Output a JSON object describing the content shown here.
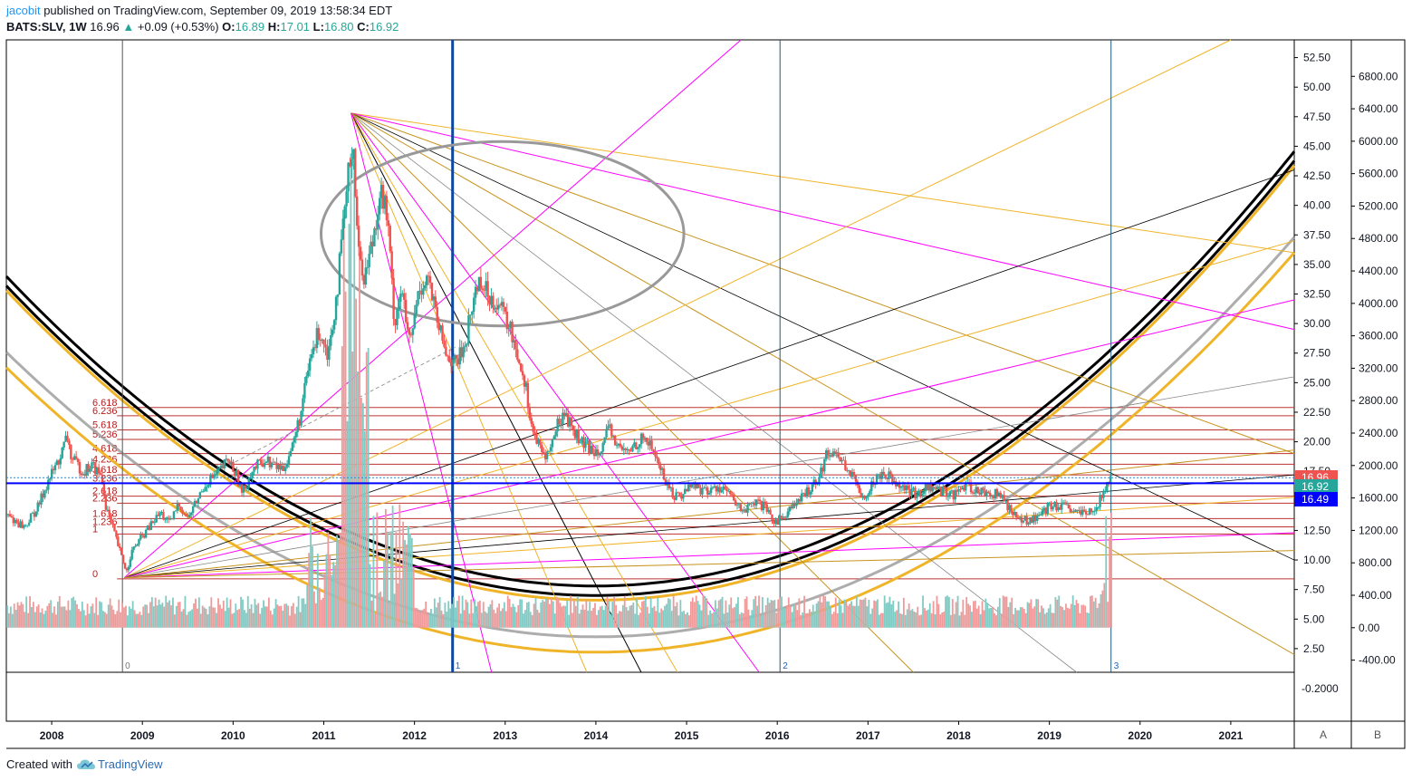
{
  "header": {
    "author": "jacobit",
    "published": "published on TradingView.com, September 09, 2019 13:58:34 EDT",
    "symbol": "BATS:SLV, 1W",
    "last": "16.96",
    "change_arrow": "▲",
    "change": "+0.09 (+0.53%)",
    "open_label": "O:",
    "open": "16.89",
    "high_label": "H:",
    "high": "17.01",
    "low_label": "L:",
    "low": "16.80",
    "close_label": "C:",
    "close": "16.92"
  },
  "footer": {
    "created_with": "Created with",
    "brand": "TradingView"
  },
  "price_tags": [
    {
      "text": "16.96",
      "color": "#ef5350"
    },
    {
      "text": "16.92",
      "color": "#26a69a"
    },
    {
      "text": "16.49",
      "color": "#0000ff"
    }
  ],
  "scale_buttons": [
    "A",
    "B"
  ],
  "colors": {
    "up": "#26a69a",
    "down": "#ef5350",
    "fib": "#b71c1c",
    "gold": "#f0b429",
    "magenta": "#ff00ff",
    "blue": "#0d47a1"
  },
  "chart_data": {
    "type": "candlestick",
    "title": "BATS:SLV, 1W",
    "x_ticks": [
      "2008",
      "2009",
      "2010",
      "2011",
      "2012",
      "2013",
      "2014",
      "2015",
      "2016",
      "2017",
      "2018",
      "2019",
      "2020",
      "2021"
    ],
    "x_tick_year_values": [
      2008,
      2009,
      2010,
      2011,
      2012,
      2013,
      2014,
      2015,
      2016,
      2017,
      2018,
      2019,
      2020,
      2021
    ],
    "xlim": [
      2007.5,
      2021.7
    ],
    "price_axis_ticks": [
      "52.50",
      "50.00",
      "47.50",
      "45.00",
      "42.50",
      "40.00",
      "37.50",
      "35.00",
      "32.50",
      "30.00",
      "27.50",
      "25.00",
      "22.50",
      "20.00",
      "17.50",
      "15.00",
      "12.50",
      "10.00",
      "7.50",
      "5.00",
      "2.50"
    ],
    "price_axis_values": [
      52.5,
      50,
      47.5,
      45,
      42.5,
      40,
      37.5,
      35,
      32.5,
      30,
      27.5,
      25,
      22.5,
      20,
      17.5,
      15,
      12.5,
      10,
      7.5,
      5,
      2.5
    ],
    "ylim": [
      0.5,
      54.0
    ],
    "volume_axis_ticks": [
      "6800.00",
      "6400.00",
      "6000.00",
      "5600.00",
      "5200.00",
      "4800.00",
      "4400.00",
      "4000.00",
      "3600.00",
      "3200.00",
      "2800.00",
      "2400.00",
      "2000.00",
      "1600.00",
      "1200.00",
      "800.00",
      "400.00",
      "0.00",
      "-400.00"
    ],
    "volume_axis_values": [
      6800,
      6400,
      6000,
      5600,
      5200,
      4800,
      4400,
      4000,
      3600,
      3200,
      2800,
      2400,
      2000,
      1600,
      1200,
      800,
      400,
      0,
      -400
    ],
    "volume_ylim": [
      -550,
      7250
    ],
    "lower_pane_ticks": [
      "-0.2000"
    ],
    "price_path": [
      [
        2007.5,
        13.8
      ],
      [
        2007.7,
        12.8
      ],
      [
        2007.85,
        14.5
      ],
      [
        2007.95,
        16.5
      ],
      [
        2008.1,
        18.8
      ],
      [
        2008.17,
        20.5
      ],
      [
        2008.22,
        18.5
      ],
      [
        2008.35,
        17.5
      ],
      [
        2008.45,
        18.0
      ],
      [
        2008.55,
        17.0
      ],
      [
        2008.6,
        14.5
      ],
      [
        2008.7,
        12.0
      ],
      [
        2008.78,
        10.0
      ],
      [
        2008.83,
        9.0
      ],
      [
        2008.87,
        10.5
      ],
      [
        2008.95,
        11.5
      ],
      [
        2009.1,
        13.0
      ],
      [
        2009.2,
        14.0
      ],
      [
        2009.3,
        13.0
      ],
      [
        2009.4,
        14.8
      ],
      [
        2009.5,
        13.5
      ],
      [
        2009.6,
        15.0
      ],
      [
        2009.7,
        16.5
      ],
      [
        2009.85,
        17.5
      ],
      [
        2009.95,
        18.5
      ],
      [
        2010.05,
        17.0
      ],
      [
        2010.1,
        15.5
      ],
      [
        2010.2,
        17.5
      ],
      [
        2010.35,
        18.5
      ],
      [
        2010.45,
        18.0
      ],
      [
        2010.55,
        17.7
      ],
      [
        2010.65,
        19.5
      ],
      [
        2010.75,
        22.5
      ],
      [
        2010.85,
        27.0
      ],
      [
        2010.95,
        29.5
      ],
      [
        2011.05,
        27.5
      ],
      [
        2011.15,
        33.0
      ],
      [
        2011.25,
        41.0
      ],
      [
        2011.32,
        46.0
      ],
      [
        2011.38,
        36.0
      ],
      [
        2011.45,
        34.0
      ],
      [
        2011.55,
        37.5
      ],
      [
        2011.62,
        41.5
      ],
      [
        2011.7,
        39.0
      ],
      [
        2011.78,
        30.0
      ],
      [
        2011.85,
        33.0
      ],
      [
        2011.95,
        28.0
      ],
      [
        2012.05,
        33.0
      ],
      [
        2012.15,
        34.0
      ],
      [
        2012.25,
        30.0
      ],
      [
        2012.35,
        27.5
      ],
      [
        2012.45,
        26.5
      ],
      [
        2012.55,
        28.0
      ],
      [
        2012.65,
        32.0
      ],
      [
        2012.72,
        34.0
      ],
      [
        2012.8,
        32.5
      ],
      [
        2012.9,
        32.0
      ],
      [
        2013.0,
        30.5
      ],
      [
        2013.1,
        28.5
      ],
      [
        2013.22,
        25.0
      ],
      [
        2013.3,
        21.0
      ],
      [
        2013.4,
        19.0
      ],
      [
        2013.48,
        19.0
      ],
      [
        2013.58,
        21.5
      ],
      [
        2013.65,
        22.5
      ],
      [
        2013.75,
        21.0
      ],
      [
        2013.85,
        19.8
      ],
      [
        2013.95,
        19.3
      ],
      [
        2014.05,
        19.5
      ],
      [
        2014.15,
        21.0
      ],
      [
        2014.25,
        19.5
      ],
      [
        2014.35,
        19.0
      ],
      [
        2014.45,
        20.0
      ],
      [
        2014.55,
        20.3
      ],
      [
        2014.65,
        19.0
      ],
      [
        2014.75,
        17.0
      ],
      [
        2014.85,
        15.5
      ],
      [
        2014.95,
        15.5
      ],
      [
        2015.05,
        16.5
      ],
      [
        2015.15,
        16.0
      ],
      [
        2015.25,
        15.8
      ],
      [
        2015.35,
        16.2
      ],
      [
        2015.45,
        15.8
      ],
      [
        2015.55,
        14.5
      ],
      [
        2015.65,
        14.2
      ],
      [
        2015.75,
        14.8
      ],
      [
        2015.85,
        14.5
      ],
      [
        2015.95,
        13.3
      ],
      [
        2016.05,
        13.5
      ],
      [
        2016.15,
        14.5
      ],
      [
        2016.25,
        15.0
      ],
      [
        2016.35,
        16.0
      ],
      [
        2016.45,
        17.0
      ],
      [
        2016.55,
        19.0
      ],
      [
        2016.62,
        19.3
      ],
      [
        2016.7,
        18.5
      ],
      [
        2016.8,
        17.5
      ],
      [
        2016.9,
        15.8
      ],
      [
        2016.98,
        15.5
      ],
      [
        2017.05,
        16.5
      ],
      [
        2017.15,
        17.5
      ],
      [
        2017.25,
        17.0
      ],
      [
        2017.35,
        16.5
      ],
      [
        2017.45,
        15.8
      ],
      [
        2017.55,
        15.5
      ],
      [
        2017.65,
        16.2
      ],
      [
        2017.75,
        16.0
      ],
      [
        2017.85,
        15.8
      ],
      [
        2017.95,
        15.5
      ],
      [
        2018.05,
        16.2
      ],
      [
        2018.15,
        16.0
      ],
      [
        2018.25,
        15.8
      ],
      [
        2018.35,
        15.6
      ],
      [
        2018.45,
        15.5
      ],
      [
        2018.55,
        14.5
      ],
      [
        2018.65,
        13.5
      ],
      [
        2018.72,
        13.3
      ],
      [
        2018.8,
        13.5
      ],
      [
        2018.9,
        13.8
      ],
      [
        2019.0,
        14.5
      ],
      [
        2019.1,
        14.6
      ],
      [
        2019.2,
        14.3
      ],
      [
        2019.3,
        14.0
      ],
      [
        2019.4,
        13.8
      ],
      [
        2019.48,
        14.2
      ],
      [
        2019.55,
        15.0
      ],
      [
        2019.62,
        16.0
      ],
      [
        2019.69,
        16.96
      ]
    ],
    "key_levels": [
      16.96,
      16.92,
      16.49
    ],
    "fib_levels": {
      "labels": [
        "6.618",
        "6.236",
        "5.618",
        "5.236",
        "4.618",
        "4.236",
        "3.618",
        "3.236",
        "2.618",
        "2.236",
        "1.618",
        "1.236",
        "1",
        "0"
      ],
      "prices": [
        22.9,
        22.2,
        21.0,
        20.2,
        19.0,
        18.1,
        17.2,
        16.5,
        15.4,
        14.8,
        13.5,
        12.8,
        12.2,
        8.4
      ]
    },
    "verticals": [
      {
        "x": 2008.78,
        "label": "0",
        "color": "#555555"
      },
      {
        "x": 2012.42,
        "label": "1",
        "color": "#0d47a1"
      },
      {
        "x": 2016.03,
        "label": "2",
        "color": "#1e5a73"
      },
      {
        "x": 2019.68,
        "label": "3",
        "color": "#1e5a73"
      }
    ],
    "anchor_high": [
      2011.3,
      47.8
    ],
    "anchor_low": [
      2008.8,
      8.5
    ],
    "fan_from_high": [
      {
        "to": [
          2021.7,
          36.0
        ],
        "color": "#f0b429",
        "width": 1
      },
      {
        "to": [
          2021.7,
          29.5
        ],
        "color": "#ff00ff",
        "width": 1
      },
      {
        "to": [
          2021.7,
          19.0
        ],
        "color": "#c8941e",
        "width": 1
      },
      {
        "to": [
          2021.7,
          10.0
        ],
        "color": "#000000",
        "width": 0.8
      },
      {
        "to": [
          2021.7,
          2.0
        ],
        "color": "#c8941e",
        "width": 1
      },
      {
        "to": [
          2019.3,
          0.5
        ],
        "color": "#888888",
        "width": 0.8
      },
      {
        "to": [
          2017.5,
          0.5
        ],
        "color": "#c8941e",
        "width": 1
      },
      {
        "to": [
          2015.8,
          0.5
        ],
        "color": "#ff00ff",
        "width": 1
      },
      {
        "to": [
          2014.9,
          0.5
        ],
        "color": "#f0b429",
        "width": 1
      },
      {
        "to": [
          2014.5,
          0.5
        ],
        "color": "#000000",
        "width": 1
      },
      {
        "to": [
          2013.9,
          0.5
        ],
        "color": "#f0b429",
        "width": 1
      },
      {
        "to": [
          2012.85,
          0.5
        ],
        "color": "#ff00ff",
        "width": 1
      }
    ],
    "fan_from_low": [
      {
        "to": [
          2015.6,
          54.0
        ],
        "color": "#ff00ff",
        "width": 1
      },
      {
        "to": [
          2021.0,
          54.0
        ],
        "color": "#f0b429",
        "width": 1
      },
      {
        "to": [
          2021.7,
          37.0
        ],
        "color": "#f0b429",
        "width": 1
      },
      {
        "to": [
          2021.7,
          43.0
        ],
        "color": "#000000",
        "width": 0.8
      },
      {
        "to": [
          2021.7,
          32.0
        ],
        "color": "#ff00ff",
        "width": 1
      },
      {
        "to": [
          2021.7,
          25.5
        ],
        "color": "#888888",
        "width": 0.8
      },
      {
        "to": [
          2021.7,
          19.3
        ],
        "color": "#c8941e",
        "width": 1
      },
      {
        "to": [
          2021.7,
          17.2
        ],
        "color": "#000000",
        "width": 0.8
      },
      {
        "to": [
          2021.7,
          15.3
        ],
        "color": "#f0b429",
        "width": 1
      },
      {
        "to": [
          2021.7,
          12.3
        ],
        "color": "#ff00ff",
        "width": 1
      },
      {
        "to": [
          2021.7,
          10.8
        ],
        "color": "#c8941e",
        "width": 1
      }
    ],
    "ellipse": {
      "center": [
        2012.97,
        37.6
      ],
      "rx_years": 2.0,
      "ry_price": 7.8,
      "color": "#999999"
    },
    "arcs": [
      {
        "center_x": 2014.0,
        "depth": 7.0,
        "color": "#000000",
        "width": 3
      },
      {
        "center_x": 2014.0,
        "depth": 7.8,
        "color": "#000000",
        "width": 3
      },
      {
        "center_x": 2014.0,
        "depth": 6.6,
        "color": "#f0b429",
        "width": 3
      },
      {
        "center_x": 2014.0,
        "depth": 3.5,
        "color": "#999999",
        "width": 3
      },
      {
        "center_x": 2014.0,
        "depth": 2.2,
        "color": "#f0b429",
        "width": 3
      }
    ]
  }
}
